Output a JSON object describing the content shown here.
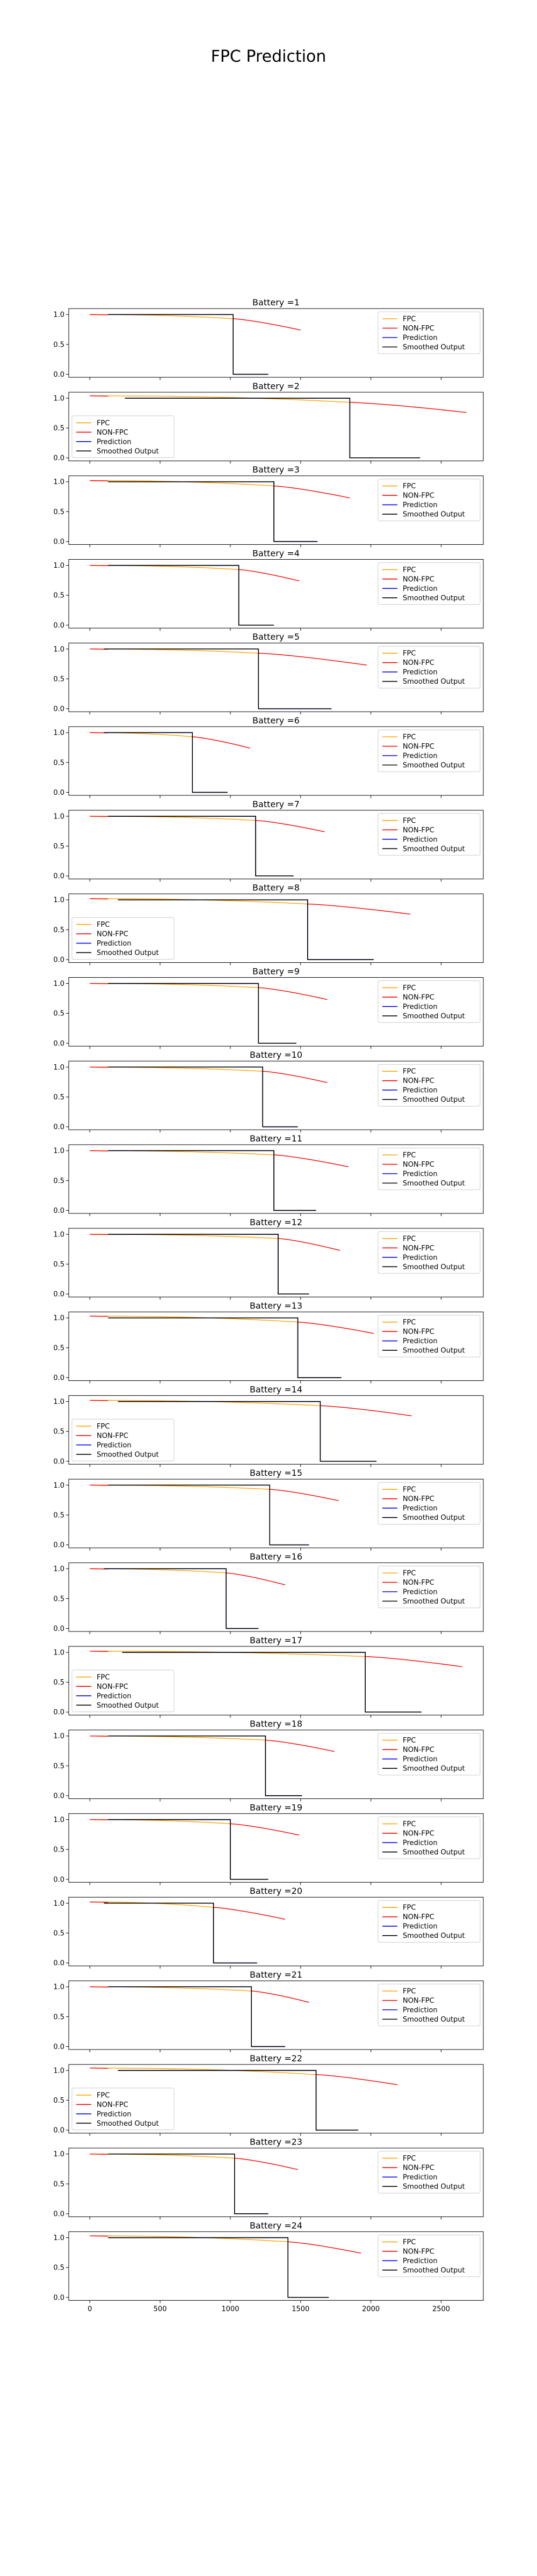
{
  "figure": {
    "suptitle": "FPC Prediction"
  },
  "colors": {
    "fpc": "#FFA500",
    "non_fpc": "#FF0000",
    "prediction": "#0000FF",
    "smoothed": "#000000"
  },
  "chart_data": {
    "type": "line",
    "suptitle": "FPC Prediction",
    "xlim": [
      -150,
      2800
    ],
    "ylim": [
      -0.05,
      1.1
    ],
    "xticks": [
      0,
      500,
      1000,
      1500,
      2000,
      2500
    ],
    "yticks": [
      0.0,
      0.5,
      1.0
    ],
    "xtick_labels": [
      "0",
      "500",
      "1000",
      "1500",
      "2000",
      "2500"
    ],
    "ytick_labels": [
      "0.0",
      "0.5",
      "1.0"
    ],
    "legend_labels": [
      "FPC",
      "NON-FPC",
      "Prediction",
      "Smoothed Output"
    ],
    "panels": [
      {
        "title": "Battery =1",
        "transition": 1020,
        "end": 1500,
        "smooth_start": 130,
        "pred_end": 1270,
        "y_end": 0.74,
        "y_trans": 0.93,
        "y_start": 1.0,
        "legend": "right"
      },
      {
        "title": "Battery =2",
        "transition": 1850,
        "end": 2680,
        "smooth_start": 250,
        "pred_end": 2350,
        "y_end": 0.76,
        "y_trans": 0.93,
        "y_start": 1.04,
        "legend": "left"
      },
      {
        "title": "Battery =3",
        "transition": 1310,
        "end": 1850,
        "smooth_start": 130,
        "pred_end": 1620,
        "y_end": 0.73,
        "y_trans": 0.93,
        "y_start": 1.02,
        "legend": "right"
      },
      {
        "title": "Battery =4",
        "transition": 1060,
        "end": 1490,
        "smooth_start": 130,
        "pred_end": 1310,
        "y_end": 0.74,
        "y_trans": 0.93,
        "y_start": 1.0,
        "legend": "right"
      },
      {
        "title": "Battery =5",
        "transition": 1200,
        "end": 1970,
        "smooth_start": 100,
        "pred_end": 1720,
        "y_end": 0.73,
        "y_trans": 0.93,
        "y_start": 1.0,
        "legend": "right"
      },
      {
        "title": "Battery =6",
        "transition": 730,
        "end": 1140,
        "smooth_start": 100,
        "pred_end": 980,
        "y_end": 0.74,
        "y_trans": 0.93,
        "y_start": 1.0,
        "legend": "right"
      },
      {
        "title": "Battery =7",
        "transition": 1180,
        "end": 1670,
        "smooth_start": 130,
        "pred_end": 1450,
        "y_end": 0.74,
        "y_trans": 0.93,
        "y_start": 1.0,
        "legend": "right"
      },
      {
        "title": "Battery =8",
        "transition": 1550,
        "end": 2280,
        "smooth_start": 200,
        "pred_end": 2020,
        "y_end": 0.76,
        "y_trans": 0.93,
        "y_start": 1.02,
        "legend": "left"
      },
      {
        "title": "Battery =9",
        "transition": 1200,
        "end": 1690,
        "smooth_start": 130,
        "pred_end": 1470,
        "y_end": 0.73,
        "y_trans": 0.93,
        "y_start": 1.0,
        "legend": "right"
      },
      {
        "title": "Battery =10",
        "transition": 1230,
        "end": 1690,
        "smooth_start": 130,
        "pred_end": 1480,
        "y_end": 0.74,
        "y_trans": 0.93,
        "y_start": 1.0,
        "legend": "right"
      },
      {
        "title": "Battery =11",
        "transition": 1310,
        "end": 1840,
        "smooth_start": 130,
        "pred_end": 1610,
        "y_end": 0.73,
        "y_trans": 0.93,
        "y_start": 1.0,
        "legend": "right"
      },
      {
        "title": "Battery =12",
        "transition": 1340,
        "end": 1780,
        "smooth_start": 130,
        "pred_end": 1560,
        "y_end": 0.73,
        "y_trans": 0.93,
        "y_start": 1.0,
        "legend": "right"
      },
      {
        "title": "Battery =13",
        "transition": 1480,
        "end": 2020,
        "smooth_start": 130,
        "pred_end": 1790,
        "y_end": 0.74,
        "y_trans": 0.93,
        "y_start": 1.03,
        "legend": "right"
      },
      {
        "title": "Battery =14",
        "transition": 1640,
        "end": 2290,
        "smooth_start": 200,
        "pred_end": 2040,
        "y_end": 0.76,
        "y_trans": 0.93,
        "y_start": 1.02,
        "legend": "left"
      },
      {
        "title": "Battery =15",
        "transition": 1280,
        "end": 1770,
        "smooth_start": 130,
        "pred_end": 1560,
        "y_end": 0.74,
        "y_trans": 0.93,
        "y_start": 1.0,
        "legend": "right"
      },
      {
        "title": "Battery =16",
        "transition": 970,
        "end": 1390,
        "smooth_start": 100,
        "pred_end": 1200,
        "y_end": 0.73,
        "y_trans": 0.93,
        "y_start": 1.0,
        "legend": "right"
      },
      {
        "title": "Battery =17",
        "transition": 1960,
        "end": 2650,
        "smooth_start": 230,
        "pred_end": 2360,
        "y_end": 0.76,
        "y_trans": 0.93,
        "y_start": 1.02,
        "legend": "left"
      },
      {
        "title": "Battery =18",
        "transition": 1250,
        "end": 1740,
        "smooth_start": 130,
        "pred_end": 1510,
        "y_end": 0.74,
        "y_trans": 0.93,
        "y_start": 1.0,
        "legend": "right"
      },
      {
        "title": "Battery =19",
        "transition": 1000,
        "end": 1490,
        "smooth_start": 130,
        "pred_end": 1270,
        "y_end": 0.74,
        "y_trans": 0.93,
        "y_start": 1.0,
        "legend": "right"
      },
      {
        "title": "Battery =20",
        "transition": 880,
        "end": 1390,
        "smooth_start": 100,
        "pred_end": 1190,
        "y_end": 0.73,
        "y_trans": 0.93,
        "y_start": 1.02,
        "legend": "right"
      },
      {
        "title": "Battery =21",
        "transition": 1150,
        "end": 1560,
        "smooth_start": 130,
        "pred_end": 1390,
        "y_end": 0.74,
        "y_trans": 0.93,
        "y_start": 1.0,
        "legend": "right"
      },
      {
        "title": "Battery =22",
        "transition": 1610,
        "end": 2190,
        "smooth_start": 200,
        "pred_end": 1910,
        "y_end": 0.76,
        "y_trans": 0.93,
        "y_start": 1.04,
        "legend": "left"
      },
      {
        "title": "Battery =23",
        "transition": 1030,
        "end": 1480,
        "smooth_start": 130,
        "pred_end": 1270,
        "y_end": 0.74,
        "y_trans": 0.93,
        "y_start": 1.0,
        "legend": "right"
      },
      {
        "title": "Battery =24",
        "transition": 1410,
        "end": 1930,
        "smooth_start": 130,
        "pred_end": 1700,
        "y_end": 0.74,
        "y_trans": 0.93,
        "y_start": 1.03,
        "legend": "right"
      }
    ]
  }
}
